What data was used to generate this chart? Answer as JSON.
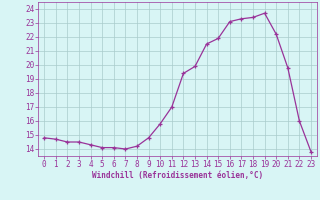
{
  "x": [
    0,
    1,
    2,
    3,
    4,
    5,
    6,
    7,
    8,
    9,
    10,
    11,
    12,
    13,
    14,
    15,
    16,
    17,
    18,
    19,
    20,
    21,
    22,
    23
  ],
  "y": [
    14.8,
    14.7,
    14.5,
    14.5,
    14.3,
    14.1,
    14.1,
    14.0,
    14.2,
    14.8,
    15.8,
    17.0,
    19.4,
    19.9,
    21.5,
    21.9,
    23.1,
    23.3,
    23.4,
    23.7,
    22.2,
    19.8,
    16.0,
    13.8
  ],
  "line_color": "#993399",
  "marker": "+",
  "bg_color": "#d8f5f5",
  "grid_color": "#aacccc",
  "xlabel": "Windchill (Refroidissement éolien,°C)",
  "ylim": [
    13.5,
    24.5
  ],
  "xlim": [
    -0.5,
    23.5
  ],
  "yticks": [
    14,
    15,
    16,
    17,
    18,
    19,
    20,
    21,
    22,
    23,
    24
  ],
  "xticks": [
    0,
    1,
    2,
    3,
    4,
    5,
    6,
    7,
    8,
    9,
    10,
    11,
    12,
    13,
    14,
    15,
    16,
    17,
    18,
    19,
    20,
    21,
    22,
    23
  ],
  "line_color_spine": "#993399",
  "tick_color": "#993399",
  "label_fontsize": 5.5,
  "tick_fontsize": 5.5,
  "xlabel_fontsize": 5.5
}
